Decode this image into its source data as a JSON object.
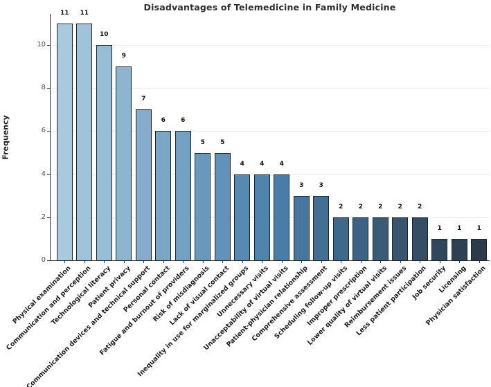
{
  "chart_data": {
    "type": "bar",
    "title": "Disadvantages of Telemedicine in Family Medicine",
    "xlabel": "",
    "ylabel": "Frequency",
    "legend_position": "none",
    "grid": "horizontal",
    "ylim": [
      0,
      11.45
    ],
    "yticks": [
      0,
      2,
      4,
      6,
      8,
      10
    ],
    "categories": [
      "Physical examination",
      "Communication and perception",
      "Technological literacy",
      "Patient privacy",
      "Communication devices and technical support",
      "Personal contact",
      "Fatigue and burnout of providers",
      "Risk of misdiagnosis",
      "Lack of visual contact",
      "Inequality in use for marginalized groups",
      "Unnecessary visits",
      "Unacceptability of virtual visits",
      "Patient-physician relationship",
      "Comprehensive assessment",
      "Scheduling follow-up visits",
      "Improper prescription",
      "Lower quality of virtual visits",
      "Reimbursement issues",
      "Less patient participation",
      "Job security",
      "Licensing",
      "Physician satisfaction"
    ],
    "values": [
      11,
      11,
      10,
      9,
      7,
      6,
      6,
      5,
      5,
      4,
      4,
      4,
      3,
      3,
      2,
      2,
      2,
      2,
      2,
      1,
      1,
      1
    ],
    "value_labels": [
      "11",
      "11",
      "10",
      "9",
      "7",
      "6",
      "6",
      "5",
      "5",
      "4",
      "4",
      "4",
      "3",
      "3",
      "2",
      "2",
      "2",
      "2",
      "2",
      "1",
      "1",
      "1"
    ],
    "ytick_labels": [
      "0",
      "2",
      "4",
      "6",
      "8",
      "10"
    ],
    "bar_colors": [
      "#a9cade",
      "#a0c3d9",
      "#97bcd4",
      "#8eb5cf",
      "#85adcb",
      "#7ca6c6",
      "#739fc1",
      "#6a98bc",
      "#6191b7",
      "#588ab1",
      "#4f83ac",
      "#497ca6",
      "#46759d",
      "#436f94",
      "#40688b",
      "#3d6281",
      "#3a5b78",
      "#37556f",
      "#344e66",
      "#31485c",
      "#2e4153",
      "#2b3b4a"
    ],
    "bar_edge_color": "#1a222c",
    "colors": {
      "title_text": "#2e2e2e",
      "axis_label_text": "#262626",
      "tick_text": "#4a4a4a",
      "value_label_text": "#111111",
      "gridline": "#ebebeb",
      "spine": "#2f2f2f",
      "background": "#ffffff"
    }
  }
}
